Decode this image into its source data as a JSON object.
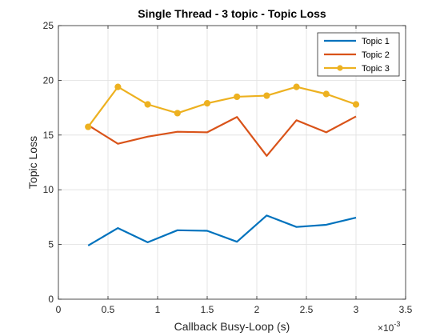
{
  "chart_data": {
    "type": "line",
    "title": "Single Thread - 3 topic - Topic Loss",
    "xlabel": "Callback Busy-Loop (s)",
    "ylabel": "Topic Loss",
    "x_exponent_base": "×10",
    "x_exponent_power": "-3",
    "xlim": [
      0,
      3.5
    ],
    "ylim": [
      0,
      25
    ],
    "xticks": [
      "0",
      "0.5",
      "1",
      "1.5",
      "2",
      "2.5",
      "3",
      "3.5"
    ],
    "xtick_values": [
      0,
      0.5,
      1,
      1.5,
      2,
      2.5,
      3,
      3.5
    ],
    "yticks": [
      "0",
      "5",
      "10",
      "15",
      "20",
      "25"
    ],
    "ytick_values": [
      0,
      5,
      10,
      15,
      20,
      25
    ],
    "grid": true,
    "legend_position": "top-right",
    "x": [
      0.3,
      0.6,
      0.9,
      1.2,
      1.5,
      1.8,
      2.1,
      2.4,
      2.7,
      3.0
    ],
    "series": [
      {
        "name": "Topic 1",
        "color": "#0072BD",
        "marker": "none",
        "values": [
          4.9,
          6.5,
          5.2,
          6.3,
          6.25,
          5.25,
          7.65,
          6.6,
          6.8,
          7.45
        ]
      },
      {
        "name": "Topic 2",
        "color": "#D95319",
        "marker": "none",
        "values": [
          15.9,
          14.2,
          14.85,
          15.3,
          15.25,
          16.65,
          13.1,
          16.35,
          15.25,
          16.7
        ]
      },
      {
        "name": "Topic 3",
        "color": "#EDB120",
        "marker": "circle",
        "values": [
          15.75,
          19.4,
          17.8,
          17.0,
          17.9,
          18.5,
          18.6,
          19.4,
          18.75,
          17.8
        ]
      }
    ]
  }
}
